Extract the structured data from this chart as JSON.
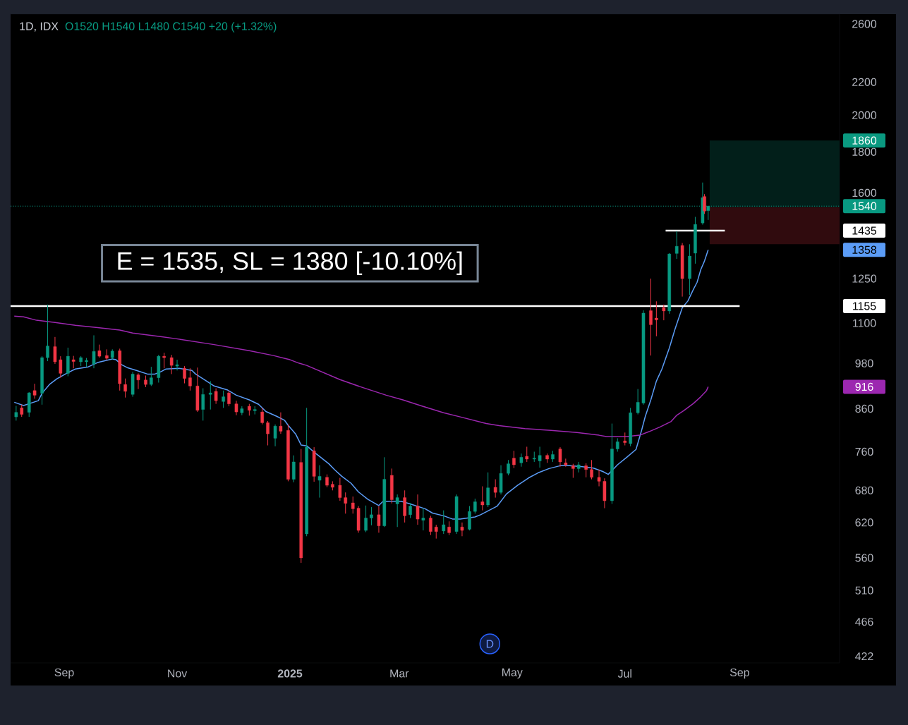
{
  "chart_data": {
    "type": "candlestick",
    "title": "1D, IDX",
    "subtitle": "O1520 H1540 L1480 C1540 +20 (+1.32%)",
    "annotations": [
      "E = 1535, SL = 1380 [-10.10%]",
      {
        "text": "D",
        "x": "2025-04-19"
      }
    ],
    "x": [
      "2024-08-06",
      "2024-08-09",
      "2024-08-13",
      "2024-08-16",
      "2024-08-20",
      "2024-08-23",
      "2024-08-27",
      "2024-08-30",
      "2024-09-03",
      "2024-09-06",
      "2024-09-10",
      "2024-09-13",
      "2024-09-17",
      "2024-09-20",
      "2024-09-24",
      "2024-09-27",
      "2024-10-01",
      "2024-10-04",
      "2024-10-08",
      "2024-10-11",
      "2024-10-15",
      "2024-10-18",
      "2024-10-22",
      "2024-10-25",
      "2024-10-29",
      "2024-11-01",
      "2024-11-05",
      "2024-11-08",
      "2024-11-12",
      "2024-11-15",
      "2024-11-19",
      "2024-11-22",
      "2024-11-26",
      "2024-11-29",
      "2024-12-03",
      "2024-12-06",
      "2024-12-10",
      "2024-12-13",
      "2024-12-17",
      "2024-12-20",
      "2024-12-24",
      "2024-12-27",
      "2024-12-31",
      "2025-01-03",
      "2025-01-07",
      "2025-01-10",
      "2025-01-14",
      "2025-01-17",
      "2025-01-21",
      "2025-01-24",
      "2025-01-28",
      "2025-01-31",
      "2025-02-04",
      "2025-02-07",
      "2025-02-11",
      "2025-02-14",
      "2025-02-18",
      "2025-02-21",
      "2025-02-25",
      "2025-02-28",
      "2025-03-04",
      "2025-03-07",
      "2025-03-11",
      "2025-03-14",
      "2025-03-18",
      "2025-03-21",
      "2025-03-25",
      "2025-03-28",
      "2025-04-01",
      "2025-04-04",
      "2025-04-08",
      "2025-04-11",
      "2025-04-15",
      "2025-04-18",
      "2025-04-22",
      "2025-04-25",
      "2025-04-29",
      "2025-05-02",
      "2025-05-06",
      "2025-05-09",
      "2025-05-13",
      "2025-05-16",
      "2025-05-20",
      "2025-05-23",
      "2025-05-27",
      "2025-05-30",
      "2025-06-03",
      "2025-06-06",
      "2025-06-10",
      "2025-06-13",
      "2025-06-17",
      "2025-06-20",
      "2025-06-24",
      "2025-06-27",
      "2025-07-01",
      "2025-07-04",
      "2025-07-08",
      "2025-07-11",
      "2025-07-15",
      "2025-07-18",
      "2025-07-22",
      "2025-07-25",
      "2025-07-29",
      "2025-08-01",
      "2025-08-05",
      "2025-08-08",
      "2025-08-12",
      "2025-08-13",
      "2025-08-15"
    ],
    "ohlc": [
      [
        840,
        867,
        831,
        851
      ],
      [
        862,
        870,
        840,
        846
      ],
      [
        851,
        902,
        840,
        900
      ],
      [
        906,
        924,
        885,
        894
      ],
      [
        899,
        1000,
        870,
        996
      ],
      [
        996,
        1160,
        986,
        1030
      ],
      [
        1028,
        1057,
        978,
        984
      ],
      [
        990,
        1000,
        940,
        952
      ],
      [
        952,
        1025,
        944,
        1000
      ],
      [
        990,
        1001,
        966,
        985
      ],
      [
        984,
        1000,
        972,
        996
      ],
      [
        984,
        995,
        970,
        988
      ],
      [
        978,
        1062,
        966,
        1014
      ],
      [
        1016,
        1034,
        996,
        1000
      ],
      [
        1002,
        1020,
        988,
        994
      ],
      [
        996,
        1020,
        990,
        1015
      ],
      [
        1016,
        1022,
        906,
        924
      ],
      [
        922,
        938,
        888,
        904
      ],
      [
        896,
        956,
        890,
        950
      ],
      [
        948,
        952,
        910,
        934
      ],
      [
        934,
        946,
        915,
        922
      ],
      [
        922,
        970,
        918,
        940
      ],
      [
        940,
        1004,
        927,
        1000
      ],
      [
        1000,
        1010,
        966,
        996
      ],
      [
        996,
        1004,
        950,
        974
      ],
      [
        972,
        990,
        960,
        976
      ],
      [
        966,
        972,
        925,
        938
      ],
      [
        940,
        966,
        906,
        918
      ],
      [
        918,
        968,
        852,
        856
      ],
      [
        858,
        912,
        831,
        896
      ],
      [
        896,
        931,
        858,
        900
      ],
      [
        904,
        912,
        872,
        880
      ],
      [
        878,
        906,
        862,
        890
      ],
      [
        900,
        906,
        866,
        872
      ],
      [
        872,
        880,
        844,
        852
      ],
      [
        850,
        866,
        844,
        860
      ],
      [
        866,
        872,
        843,
        856
      ],
      [
        855,
        866,
        846,
        858
      ],
      [
        852,
        862,
        822,
        826
      ],
      [
        826,
        830,
        774,
        800
      ],
      [
        790,
        822,
        772,
        818
      ],
      [
        818,
        851,
        800,
        806
      ],
      [
        808,
        822,
        698,
        702
      ],
      [
        702,
        752,
        696,
        738
      ],
      [
        737,
        766,
        552,
        560
      ],
      [
        600,
        862,
        596,
        770
      ],
      [
        762,
        770,
        697,
        708
      ],
      [
        700,
        731,
        666,
        708
      ],
      [
        706,
        712,
        686,
        690
      ],
      [
        692,
        698,
        680,
        686
      ],
      [
        690,
        705,
        660,
        666
      ],
      [
        666,
        676,
        636,
        655
      ],
      [
        656,
        668,
        636,
        645
      ],
      [
        646,
        650,
        602,
        606
      ],
      [
        606,
        651,
        603,
        628
      ],
      [
        628,
        648,
        615,
        634
      ],
      [
        634,
        650,
        602,
        614
      ],
      [
        614,
        748,
        612,
        702
      ],
      [
        710,
        724,
        655,
        662
      ],
      [
        654,
        672,
        612,
        666
      ],
      [
        666,
        680,
        620,
        632
      ],
      [
        634,
        656,
        628,
        650
      ],
      [
        650,
        672,
        616,
        626
      ],
      [
        624,
        646,
        606,
        628
      ],
      [
        628,
        632,
        598,
        604
      ],
      [
        612,
        616,
        592,
        604
      ],
      [
        605,
        642,
        600,
        616
      ],
      [
        612,
        622,
        598,
        602
      ],
      [
        604,
        672,
        600,
        668
      ],
      [
        612,
        620,
        596,
        606
      ],
      [
        608,
        650,
        606,
        640
      ],
      [
        640,
        664,
        636,
        658
      ],
      [
        658,
        688,
        642,
        652
      ],
      [
        652,
        716,
        648,
        685
      ],
      [
        686,
        702,
        666,
        676
      ],
      [
        676,
        731,
        672,
        714
      ],
      [
        714,
        742,
        710,
        734
      ],
      [
        746,
        762,
        725,
        732
      ],
      [
        736,
        756,
        728,
        748
      ],
      [
        750,
        771,
        738,
        744
      ],
      [
        744,
        760,
        738,
        746
      ],
      [
        740,
        771,
        726,
        752
      ],
      [
        752,
        756,
        736,
        744
      ],
      [
        744,
        762,
        738,
        754
      ],
      [
        766,
        770,
        728,
        738
      ],
      [
        736,
        745,
        728,
        732
      ],
      [
        730,
        734,
        705,
        724
      ],
      [
        724,
        738,
        716,
        732
      ],
      [
        730,
        735,
        706,
        722
      ],
      [
        722,
        742,
        702,
        706
      ],
      [
        706,
        722,
        688,
        698
      ],
      [
        698,
        704,
        646,
        660
      ],
      [
        660,
        824,
        654,
        766
      ],
      [
        766,
        790,
        760,
        782
      ],
      [
        784,
        803,
        774,
        780
      ],
      [
        778,
        862,
        772,
        850
      ],
      [
        850,
        910,
        846,
        876
      ],
      [
        874,
        1141,
        870,
        1132
      ],
      [
        1140,
        1250,
        1002,
        1095
      ],
      [
        1116,
        1171,
        1059,
        1110
      ],
      [
        1150,
        1160,
        1109,
        1139
      ],
      [
        1139,
        1345,
        1130,
        1342
      ],
      [
        1344,
        1434,
        1323,
        1372
      ],
      [
        1375,
        1385,
        1187,
        1250
      ],
      [
        1250,
        1380,
        1193,
        1334
      ],
      [
        1345,
        1493,
        1305,
        1461
      ],
      [
        1467,
        1648,
        1460,
        1578
      ],
      [
        1583,
        1594,
        1506,
        1518
      ],
      [
        1520,
        1540,
        1480,
        1540
      ]
    ],
    "colors": [
      "#089981",
      "#f23645",
      "#089981",
      "#f23645",
      "#089981",
      "#089981",
      "#f23645",
      "#f23645",
      "#089981",
      "#f23645",
      "#089981",
      "#089981",
      "#089981",
      "#f23645",
      "#f23645",
      "#089981",
      "#f23645",
      "#f23645",
      "#089981",
      "#f23645",
      "#f23645",
      "#089981",
      "#089981",
      "#f23645",
      "#f23645",
      "#089981",
      "#f23645",
      "#f23645",
      "#f23645",
      "#089981",
      "#089981",
      "#f23645",
      "#089981",
      "#f23645",
      "#f23645",
      "#089981",
      "#f23645",
      "#089981",
      "#f23645",
      "#f23645",
      "#089981",
      "#f23645",
      "#f23645",
      "#089981",
      "#f23645",
      "#089981",
      "#f23645",
      "#089981",
      "#f23645",
      "#f23645",
      "#f23645",
      "#f23645",
      "#f23645",
      "#f23645",
      "#089981",
      "#089981",
      "#f23645",
      "#089981",
      "#f23645",
      "#089981",
      "#f23645",
      "#089981",
      "#f23645",
      "#089981",
      "#f23645",
      "#f23645",
      "#089981",
      "#f23645",
      "#089981",
      "#f23645",
      "#089981",
      "#089981",
      "#f23645",
      "#089981",
      "#f23645",
      "#089981",
      "#089981",
      "#f23645",
      "#089981",
      "#f23645",
      "#089981",
      "#089981",
      "#f23645",
      "#089981",
      "#f23645",
      "#f23645",
      "#f23645",
      "#089981",
      "#f23645",
      "#f23645",
      "#f23645",
      "#f23645",
      "#089981",
      "#089981",
      "#f23645",
      "#089981",
      "#089981",
      "#089981",
      "#f23645",
      "#f23645",
      "#f23645",
      "#089981",
      "#089981",
      "#f23645",
      "#089981",
      "#089981",
      "#089981",
      "#f23645",
      "#089981"
    ],
    "series": [
      {
        "type": "line",
        "color": "#5b9cf6",
        "x": [
          "2024-08-05",
          "2024-08-10",
          "2024-08-18",
          "2024-08-20",
          "2024-08-24",
          "2024-08-28",
          "2024-09-03",
          "2024-09-07",
          "2024-09-14",
          "2024-09-19",
          "2024-09-27",
          "2024-09-29",
          "2024-10-02",
          "2024-10-05",
          "2024-10-10",
          "2024-10-16",
          "2024-10-20",
          "2024-10-23",
          "2024-10-26",
          "2024-11-02",
          "2024-11-09",
          "2024-11-11",
          "2024-11-15",
          "2024-11-21",
          "2024-11-28",
          "2024-12-03",
          "2024-12-10",
          "2024-12-15",
          "2024-12-19",
          "2024-12-25",
          "2024-12-29",
          "2024-12-31",
          "2025-01-04",
          "2025-01-07",
          "2025-01-10",
          "2025-01-15",
          "2025-01-22",
          "2025-01-25",
          "2025-01-29",
          "2025-02-03",
          "2025-02-07",
          "2025-02-12",
          "2025-02-18",
          "2025-02-20",
          "2025-02-24",
          "2025-03-02",
          "2025-03-06",
          "2025-03-15",
          "2025-03-19",
          "2025-03-25",
          "2025-03-30",
          "2025-04-03",
          "2025-04-11",
          "2025-04-14",
          "2025-04-23",
          "2025-04-28",
          "2025-05-04",
          "2025-05-10",
          "2025-05-15",
          "2025-05-21",
          "2025-05-27",
          "2025-06-01",
          "2025-06-08",
          "2025-06-14",
          "2025-06-19",
          "2025-06-22",
          "2025-06-27",
          "2025-07-02",
          "2025-07-07",
          "2025-07-10",
          "2025-07-12",
          "2025-07-15",
          "2025-07-18",
          "2025-07-21",
          "2025-07-25",
          "2025-07-28",
          "2025-08-01",
          "2025-08-04",
          "2025-08-07",
          "2025-08-09",
          "2025-08-11",
          "2025-08-13",
          "2025-08-15"
        ],
        "values": [
          876,
          868,
          880,
          899,
          922,
          937,
          954,
          964,
          970,
          982,
          992,
          990,
          976,
          968,
          960,
          950,
          950,
          956,
          964,
          966,
          960,
          950,
          937,
          918,
          908,
          894,
          882,
          871,
          853,
          841,
          832,
          820,
          800,
          775,
          773,
          756,
          734,
          722,
          708,
          694,
          677,
          663,
          651,
          658,
          659,
          659,
          655,
          645,
          637,
          632,
          626,
          626,
          630,
          634,
          650,
          673,
          690,
          705,
          715,
          724,
          730,
          730,
          728,
          725,
          718,
          712,
          732,
          748,
          765,
          808,
          841,
          882,
          931,
          964,
          1024,
          1080,
          1150,
          1172,
          1212,
          1237,
          1283,
          1315,
          1358
        ]
      },
      {
        "type": "line",
        "color": "#9c27b0",
        "x": [
          "2024-08-05",
          "2024-08-10",
          "2024-08-17",
          "2024-08-27",
          "2024-09-07",
          "2024-09-19",
          "2024-10-01",
          "2024-10-08",
          "2024-10-23",
          "2024-10-31",
          "2024-11-21",
          "2024-12-10",
          "2024-12-23",
          "2025-01-01",
          "2025-01-06",
          "2025-01-10",
          "2025-01-28",
          "2025-02-08",
          "2025-02-22",
          "2025-03-03",
          "2025-03-13",
          "2025-03-25",
          "2025-04-03",
          "2025-04-17",
          "2025-04-24",
          "2025-05-08",
          "2025-05-22",
          "2025-06-05",
          "2025-06-17",
          "2025-06-21",
          "2025-07-02",
          "2025-07-09",
          "2025-07-14",
          "2025-07-20",
          "2025-07-26",
          "2025-07-29",
          "2025-08-02",
          "2025-08-07",
          "2025-08-11",
          "2025-08-14",
          "2025-08-15"
        ],
        "values": [
          1122,
          1120,
          1109,
          1102,
          1093,
          1086,
          1078,
          1069,
          1058,
          1052,
          1034,
          1016,
          1002,
          990,
          980,
          974,
          935,
          916,
          894,
          882,
          867,
          850,
          840,
          824,
          819,
          812,
          808,
          803,
          797,
          794,
          794,
          797,
          805,
          816,
          829,
          844,
          856,
          873,
          890,
          905,
          916
        ]
      },
      {
        "type": "line",
        "color": "#ffffff",
        "x": [
          "2024-08-03",
          "2025-09-01"
        ],
        "values": [
          1155,
          1155
        ]
      },
      {
        "type": "line",
        "color": "#ffffff",
        "x": [
          "2025-07-23",
          "2025-08-24"
        ],
        "values": [
          1435,
          1435
        ]
      }
    ],
    "ref_lines": [
      {
        "axis": "y",
        "value": 1540,
        "label": "1540",
        "color": "#089981",
        "line_style": "dotted"
      }
    ],
    "bands": [
      {
        "axis": "y",
        "from": 1535,
        "to": 1860,
        "label": "1860",
        "color": "#021f1a"
      },
      {
        "axis": "y",
        "from": 1380,
        "to": 1535,
        "color": "#300b0e"
      }
    ],
    "log": "y",
    "xlim": [
      "2024-08-03",
      "2025-10-25"
    ],
    "ylim": [
      414,
      2675
    ],
    "xticks": [
      {
        "value": "2024-09-01",
        "label": "Sep"
      },
      {
        "value": "2024-11-01",
        "label": "Nov"
      },
      {
        "value": "2025-01-01",
        "label": "2025"
      },
      {
        "value": "2025-03-01",
        "label": "Mar"
      },
      {
        "value": "2025-05-01",
        "label": "May"
      },
      {
        "value": "2025-07-01",
        "label": "Jul"
      },
      {
        "value": "2025-09-01",
        "label": "Sep"
      }
    ],
    "yticks": [
      422,
      466,
      510,
      560,
      620,
      680,
      760,
      860,
      916,
      980,
      1100,
      1155,
      1250,
      1358,
      1435,
      1600,
      1800,
      2000,
      2200,
      2600
    ]
  }
}
